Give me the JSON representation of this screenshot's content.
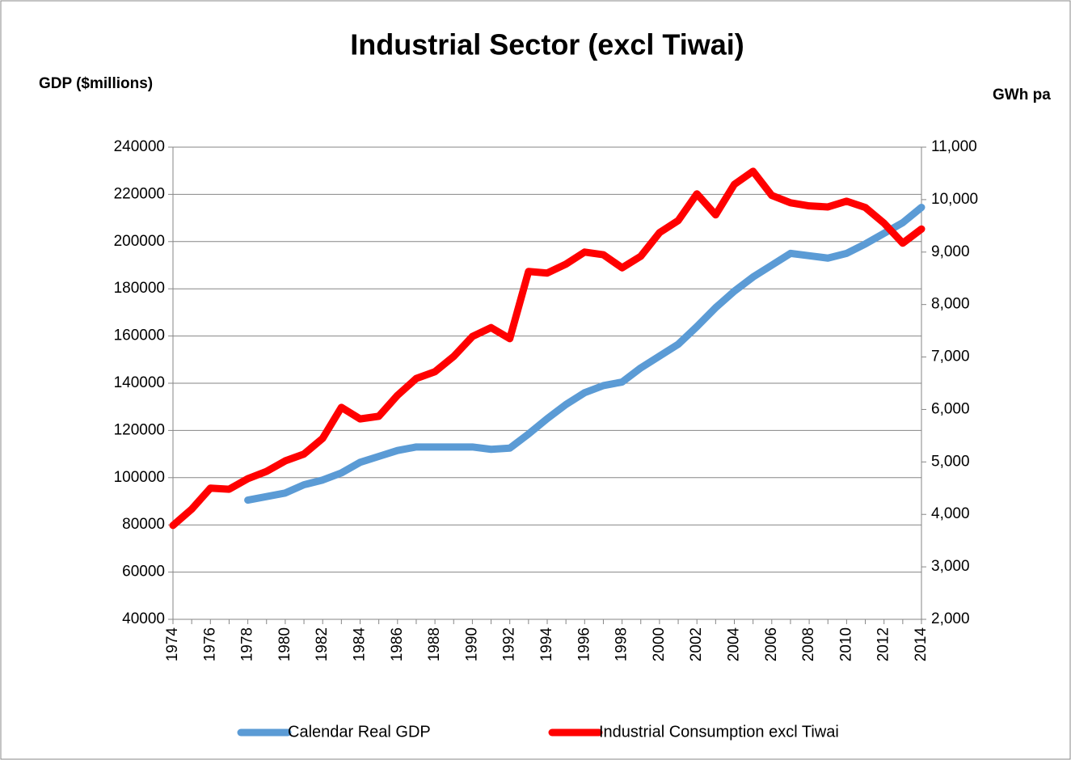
{
  "chart_data": {
    "type": "line",
    "title": "Industrial Sector (excl Tiwai)",
    "ylabel": "GDP ($millions)",
    "y2label": "GWh pa",
    "x": [
      1974,
      1975,
      1976,
      1977,
      1978,
      1979,
      1980,
      1981,
      1982,
      1983,
      1984,
      1985,
      1986,
      1987,
      1988,
      1989,
      1990,
      1991,
      1992,
      1993,
      1994,
      1995,
      1996,
      1997,
      1998,
      1999,
      2000,
      2001,
      2002,
      2003,
      2004,
      2005,
      2006,
      2007,
      2008,
      2009,
      2010,
      2011,
      2012,
      2013,
      2014
    ],
    "xlim": [
      1974,
      2014
    ],
    "xticks": [
      1974,
      1976,
      1978,
      1980,
      1982,
      1984,
      1986,
      1988,
      1990,
      1992,
      1994,
      1996,
      1998,
      2000,
      2002,
      2004,
      2006,
      2008,
      2010,
      2012,
      2014
    ],
    "ylim": [
      40000,
      240000
    ],
    "yticks": [
      40000,
      60000,
      80000,
      100000,
      120000,
      140000,
      160000,
      180000,
      200000,
      220000,
      240000
    ],
    "y2lim": [
      2000,
      11000
    ],
    "y2ticks": [
      {
        "value": 2000,
        "label": "2,000"
      },
      {
        "value": 3000,
        "label": "3,000"
      },
      {
        "value": 4000,
        "label": "4,000"
      },
      {
        "value": 5000,
        "label": "5,000"
      },
      {
        "value": 6000,
        "label": "6,000"
      },
      {
        "value": 7000,
        "label": "7,000"
      },
      {
        "value": 8000,
        "label": "8,000"
      },
      {
        "value": 9000,
        "label": "9,000"
      },
      {
        "value": 10000,
        "label": "10,000"
      },
      {
        "value": 11000,
        "label": "11,000"
      }
    ],
    "grid": true,
    "legend": "bottom",
    "series": [
      {
        "name": "Calendar Real GDP",
        "color": "#5b9bd5",
        "axis": "y",
        "values": [
          null,
          null,
          null,
          null,
          90500,
          92000,
          93500,
          97000,
          99000,
          102000,
          106500,
          109000,
          111500,
          113000,
          113000,
          113000,
          113000,
          112000,
          112500,
          118500,
          125000,
          131000,
          136000,
          139000,
          140500,
          146500,
          151500,
          156500,
          164000,
          172000,
          179000,
          185000,
          190000,
          195000,
          194000,
          193000,
          195000,
          199000,
          203500,
          208000,
          214500
        ]
      },
      {
        "name": "Industrial Consumption excl Tiwai",
        "color": "#ff0000",
        "axis": "y2",
        "values": [
          3790,
          4100,
          4500,
          4480,
          4680,
          4820,
          5020,
          5150,
          5450,
          6040,
          5820,
          5870,
          6270,
          6590,
          6720,
          7010,
          7390,
          7560,
          7350,
          8630,
          8600,
          8770,
          9000,
          8950,
          8700,
          8920,
          9370,
          9600,
          10110,
          9710,
          10290,
          10540,
          10080,
          9940,
          9880,
          9860,
          9970,
          9850,
          9550,
          9170,
          9440
        ]
      }
    ]
  }
}
